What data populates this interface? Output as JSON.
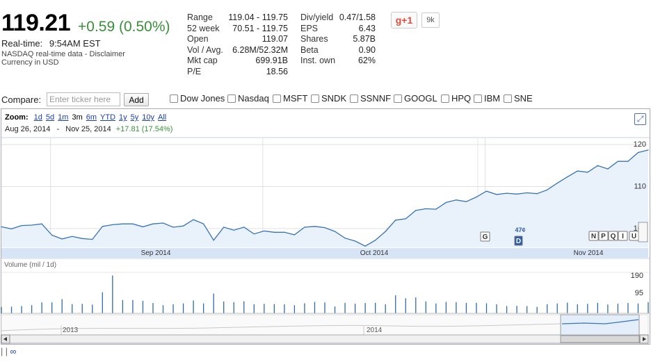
{
  "quote": {
    "price": "119.21",
    "change": "+0.59 (0.50%)",
    "realtime_label": "Real-time:",
    "realtime_time": "9:54AM EST",
    "source": "NASDAQ real-time data - Disclaimer",
    "currency": "Currency in USD"
  },
  "stats_left": [
    {
      "label": "Range",
      "value": "119.04 - 119.75"
    },
    {
      "label": "52 week",
      "value": "70.51 - 119.75"
    },
    {
      "label": "Open",
      "value": "119.07"
    },
    {
      "label": "Vol / Avg.",
      "value": "6.28M/52.32M"
    },
    {
      "label": "Mkt cap",
      "value": "699.91B"
    },
    {
      "label": "P/E",
      "value": "18.56"
    }
  ],
  "stats_right": [
    {
      "label": "Div/yield",
      "value": "0.47/1.58"
    },
    {
      "label": "EPS",
      "value": "6.43"
    },
    {
      "label": "Shares",
      "value": "5.87B"
    },
    {
      "label": "Beta",
      "value": "0.90"
    },
    {
      "label": "Inst. own",
      "value": "62%"
    }
  ],
  "social": {
    "gplus_label": "g+1",
    "count": "9k"
  },
  "compare": {
    "label": "Compare:",
    "placeholder": "Enter ticker here",
    "add_label": "Add",
    "tickers": [
      "Dow Jones",
      "Nasdaq",
      "MSFT",
      "SNDK",
      "SSNNF",
      "GOOGL",
      "HPQ",
      "IBM",
      "SNE"
    ]
  },
  "zoom": {
    "label": "Zoom:",
    "options": [
      "1d",
      "5d",
      "1m",
      "3m",
      "6m",
      "YTD",
      "1y",
      "5y",
      "10y",
      "All"
    ],
    "selected": "3m"
  },
  "range": {
    "start": "Aug 26, 2014",
    "sep": "-",
    "end": "Nov 25, 2014",
    "change": "+17.81 (17.54%)"
  },
  "axis": {
    "months": [
      "Sep 2014",
      "Oct 2014",
      "Nov 2014"
    ],
    "price_ticks": [
      "120",
      "110",
      "100"
    ],
    "volume_label": "Volume (mil / 1d)",
    "volume_ticks": [
      "190",
      "95"
    ],
    "overview_years": [
      "2013",
      "2014"
    ]
  },
  "markers": {
    "g": "G",
    "d": "D",
    "dividend": "47¢",
    "news": [
      "N",
      "P",
      "Q",
      "I",
      "U"
    ]
  },
  "chart_data": {
    "type": "area",
    "title": "",
    "ylabel": "",
    "ylim": [
      96,
      122
    ],
    "x": [
      "Aug 26",
      "Aug 27",
      "Aug 28",
      "Aug 29",
      "Sep 2",
      "Sep 3",
      "Sep 4",
      "Sep 5",
      "Sep 8",
      "Sep 9",
      "Sep 10",
      "Sep 11",
      "Sep 12",
      "Sep 15",
      "Sep 16",
      "Sep 17",
      "Sep 18",
      "Sep 19",
      "Sep 22",
      "Sep 23",
      "Sep 24",
      "Sep 25",
      "Sep 26",
      "Sep 29",
      "Sep 30",
      "Oct 1",
      "Oct 2",
      "Oct 3",
      "Oct 6",
      "Oct 7",
      "Oct 8",
      "Oct 9",
      "Oct 10",
      "Oct 13",
      "Oct 14",
      "Oct 15",
      "Oct 16",
      "Oct 17",
      "Oct 20",
      "Oct 21",
      "Oct 22",
      "Oct 23",
      "Oct 24",
      "Oct 27",
      "Oct 28",
      "Oct 29",
      "Oct 30",
      "Oct 31",
      "Nov 3",
      "Nov 4",
      "Nov 5",
      "Nov 6",
      "Nov 7",
      "Nov 10",
      "Nov 11",
      "Nov 12",
      "Nov 13",
      "Nov 14",
      "Nov 17",
      "Nov 18",
      "Nov 19",
      "Nov 20",
      "Nov 21",
      "Nov 24",
      "Nov 25"
    ],
    "series": [
      {
        "values": [
          100.9,
          100.4,
          101.2,
          101.3,
          101.6,
          98.9,
          98.0,
          98.6,
          98.1,
          97.9,
          101.0,
          101.4,
          101.6,
          101.6,
          100.9,
          101.6,
          101.8,
          100.8,
          101.1,
          102.6,
          101.6,
          97.7,
          100.8,
          100.1,
          100.8,
          99.2,
          99.9,
          99.6,
          99.6,
          99.0,
          100.8,
          101.0,
          100.7,
          99.8,
          98.2,
          97.5,
          96.3,
          97.7,
          99.8,
          102.5,
          102.8,
          104.8,
          105.2,
          105.1,
          106.7,
          107.3,
          106.9,
          108.0,
          109.4,
          108.6,
          108.9,
          108.7,
          109.0,
          108.8,
          109.7,
          111.3,
          112.8,
          114.2,
          113.9,
          115.5,
          114.7,
          116.5,
          116.5,
          118.6,
          119.2
        ]
      }
    ],
    "volume_series": [
      {
        "values": [
          30,
          31,
          34,
          38,
          51,
          51,
          66,
          43,
          44,
          41,
          98,
          176,
          62,
          62,
          58,
          48,
          38,
          42,
          46,
          60,
          46,
          92,
          55,
          52,
          56,
          42,
          44,
          43,
          42,
          38,
          47,
          53,
          51,
          32,
          49,
          45,
          48,
          49,
          42,
          84,
          70,
          74,
          55,
          46,
          53,
          52,
          49,
          49,
          47,
          42,
          34,
          35,
          34,
          30,
          42,
          46,
          50,
          42,
          44,
          49,
          41,
          45,
          48,
          46,
          52
        ]
      }
    ],
    "volume_ylim": [
      0,
      200
    ],
    "legend": "none",
    "grid": true
  }
}
